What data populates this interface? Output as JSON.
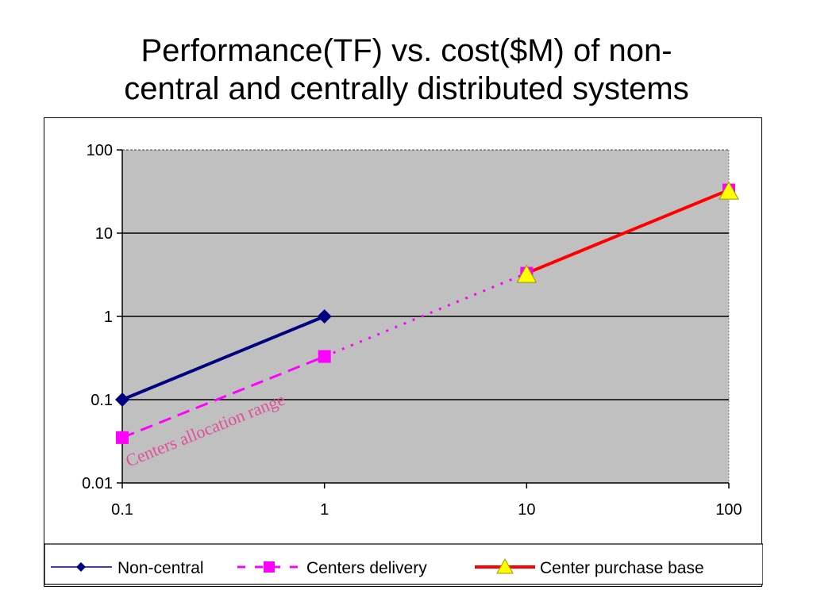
{
  "title": {
    "line1": "Performance(TF) vs. cost($M) of non-",
    "line2": "central and centrally distributed systems"
  },
  "chart_data": {
    "type": "line",
    "xscale": "log",
    "yscale": "log",
    "xlim": [
      0.1,
      100
    ],
    "ylim": [
      0.01,
      100
    ],
    "x_ticks": [
      "0.1",
      "1",
      "10",
      "100"
    ],
    "y_ticks": [
      "100",
      "10",
      "1",
      "0.1",
      "0.01"
    ],
    "grid": true,
    "plot_background": "#c0c0c0",
    "legend_position": "bottom",
    "series": [
      {
        "name": "Non-central",
        "color": "#000080",
        "marker": "diamond",
        "line_style": "solid",
        "points": [
          [
            0.1,
            0.1
          ],
          [
            1,
            1
          ]
        ]
      },
      {
        "name": "Centers delivery",
        "color": "#ff00ff",
        "marker": "square",
        "line_style": "dashed",
        "points": [
          [
            0.1,
            0.035
          ],
          [
            1,
            0.33
          ],
          [
            10,
            3.3
          ],
          [
            100,
            33
          ]
        ]
      },
      {
        "name": "Center purchase base",
        "color": "#ff0000",
        "marker": "triangle",
        "marker_color": "#ffff00",
        "line_style": "solid",
        "points": [
          [
            10,
            3.3
          ],
          [
            100,
            33
          ]
        ]
      }
    ],
    "annotations": [
      {
        "text": "Centers allocation range",
        "color": "#e0509a"
      }
    ]
  }
}
